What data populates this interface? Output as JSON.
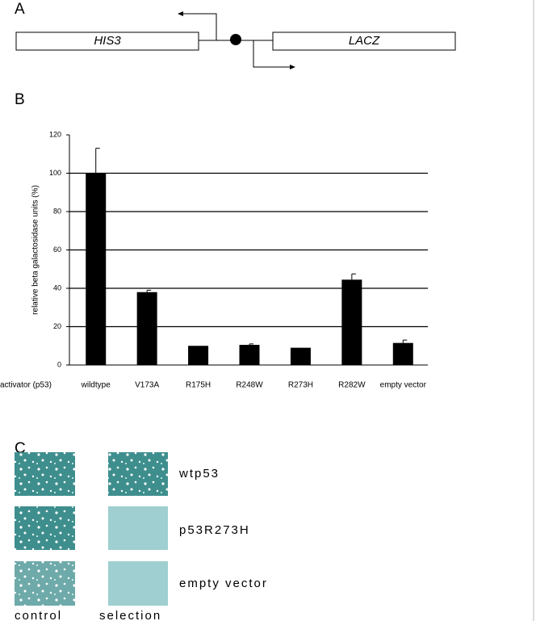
{
  "panel_a": {
    "label": "A",
    "genes": [
      "HIS3",
      "LACZ"
    ]
  },
  "panel_b": {
    "label": "B"
  },
  "chart_data": {
    "type": "bar",
    "y_label": "relative beta galactosidase units (%)",
    "x_label": "activator (p53)",
    "categories": [
      "wildtype",
      "V173A",
      "R175H",
      "R248W",
      "R273H",
      "R282W",
      "empty vector"
    ],
    "values": [
      100,
      38,
      10,
      10.5,
      9,
      44.5,
      11.5
    ],
    "errors": [
      13,
      1,
      0,
      0.5,
      0,
      3,
      1.5
    ],
    "color": "#000000",
    "ylim": [
      0,
      120
    ],
    "yticks": [
      0,
      20,
      40,
      60,
      80,
      100,
      120
    ],
    "grid": true
  },
  "panel_c": {
    "label": "C",
    "rows": [
      "wtp53",
      "p53R273H",
      "empty vector"
    ],
    "columns": [
      "control",
      "selection"
    ]
  }
}
